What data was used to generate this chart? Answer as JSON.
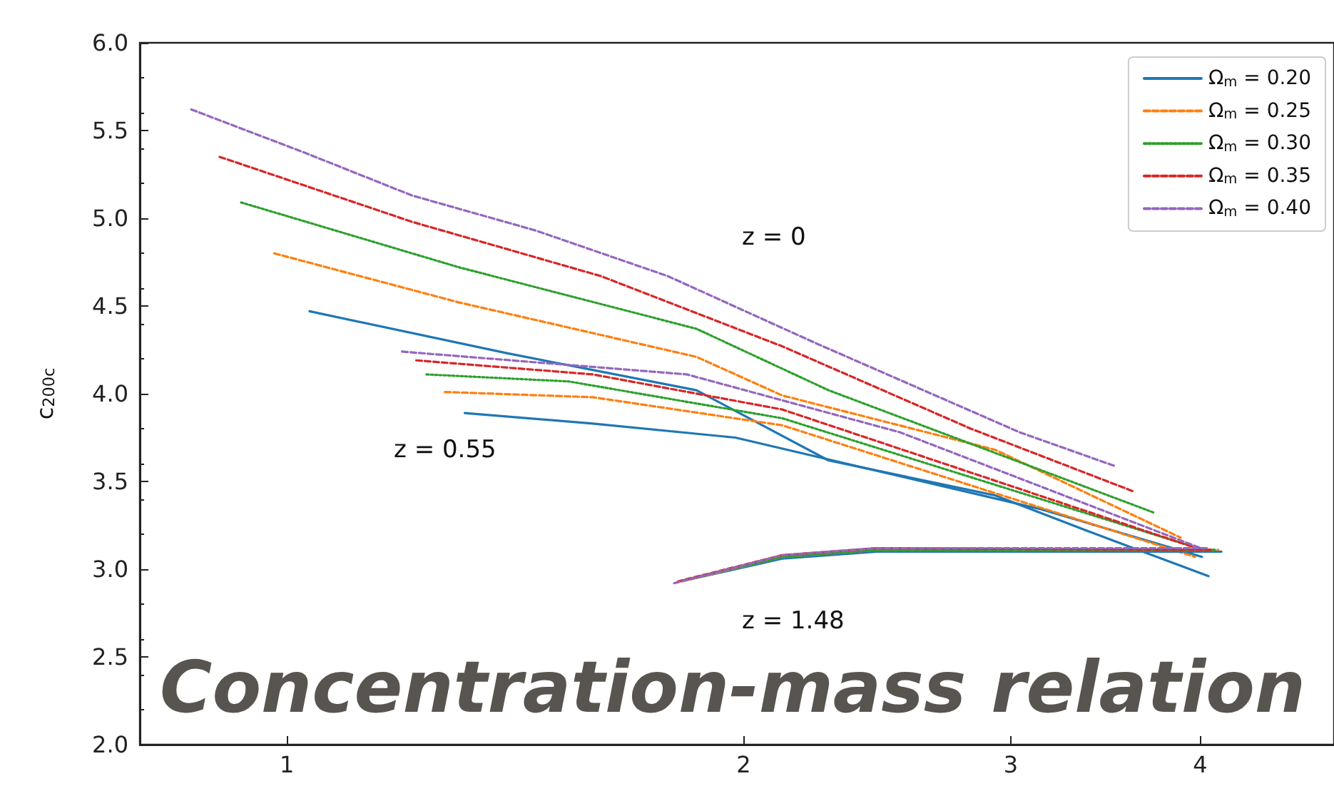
{
  "chart_data": {
    "type": "line",
    "ylabel": "c$_{200c}$",
    "xlim": [
      0.8,
      4.9
    ],
    "xticks": [
      1,
      2,
      3,
      4
    ],
    "ylim": [
      2.0,
      6.0
    ],
    "yticks": [
      {
        "value": 2.0,
        "label": "2.0"
      },
      {
        "value": 2.5,
        "label": "2.5"
      },
      {
        "value": 3.0,
        "label": "3.0"
      },
      {
        "value": 3.5,
        "label": "3.5"
      },
      {
        "value": 4.0,
        "label": "4.0"
      },
      {
        "value": 4.5,
        "label": "4.5"
      },
      {
        "value": 5.0,
        "label": "5.0"
      },
      {
        "value": 5.5,
        "label": "5.5"
      },
      {
        "value": 6.0,
        "label": "6.0"
      }
    ],
    "log": "x",
    "grid": false,
    "legend": "top right",
    "marker": "none",
    "series": [
      {
        "name": "Ω$_{m}$ = 0.20",
        "color": "#1f77b4",
        "line_style": "solid",
        "x": [
          1.035,
          1.398,
          1.862,
          2.275,
          2.931,
          3.389,
          4.05
        ],
        "values": [
          4.47,
          4.23,
          4.02,
          3.62,
          3.42,
          3.21,
          2.96
        ]
      },
      {
        "name": "Ω$_{m}$ = 0.25",
        "color": "#ff7f0e",
        "line_style": "dashed",
        "x": [
          0.981,
          1.299,
          1.862,
          2.121,
          2.931,
          3.882
        ],
        "values": [
          4.8,
          4.52,
          4.21,
          3.99,
          3.68,
          3.18
        ]
      },
      {
        "name": "Ω$_{m}$ = 0.30",
        "color": "#2ca02c",
        "line_style": "dotted",
        "x": [
          0.933,
          1.299,
          1.862,
          2.275,
          3.734
        ],
        "values": [
          5.09,
          4.72,
          4.37,
          4.02,
          3.32
        ]
      },
      {
        "name": "Ω$_{m}$ = 0.35",
        "color": "#d62728",
        "line_style": "dashed",
        "x": [
          0.903,
          1.209,
          1.611,
          2.121,
          2.825,
          3.622
        ],
        "values": [
          5.35,
          4.98,
          4.67,
          4.27,
          3.8,
          3.44
        ]
      },
      {
        "name": "Ω$_{m}$ = 0.40",
        "color": "#9467bd",
        "line_style": "dashed",
        "x": [
          0.865,
          1.03,
          1.209,
          1.459,
          1.783,
          2.229,
          3.041,
          3.508
        ],
        "values": [
          5.62,
          5.37,
          5.13,
          4.93,
          4.67,
          4.29,
          3.78,
          3.59
        ]
      },
      {
        "color": "#1f77b4",
        "line_style": "solid",
        "x": [
          1.31,
          1.591,
          1.975,
          3.147,
          4.01
        ],
        "values": [
          3.89,
          3.83,
          3.75,
          3.34,
          3.07
        ]
      },
      {
        "color": "#ff7f0e",
        "line_style": "dashed",
        "x": [
          1.271,
          1.591,
          2.121,
          3.968
        ],
        "values": [
          4.01,
          3.98,
          3.82,
          3.07
        ]
      },
      {
        "color": "#2ca02c",
        "line_style": "dotted",
        "x": [
          1.236,
          1.534,
          2.121,
          3.95
        ],
        "values": [
          4.11,
          4.07,
          3.86,
          3.13
        ]
      },
      {
        "color": "#d62728",
        "line_style": "dashed",
        "x": [
          1.217,
          1.591,
          2.121,
          4.01
        ],
        "values": [
          4.19,
          4.11,
          3.91,
          3.11
        ]
      },
      {
        "color": "#9467bd",
        "line_style": "dashed",
        "x": [
          1.191,
          1.835,
          2.536,
          4.03
        ],
        "values": [
          4.24,
          4.11,
          3.78,
          3.11
        ]
      },
      {
        "color": "#1f77b4",
        "line_style": "solid",
        "x": [
          1.84,
          2.121,
          2.449,
          4.13
        ],
        "values": [
          2.94,
          3.06,
          3.1,
          3.1
        ]
      },
      {
        "color": "#ff7f0e",
        "line_style": "dashed",
        "x": [
          1.82,
          2.121,
          2.449,
          4.11
        ],
        "values": [
          2.93,
          3.07,
          3.11,
          3.11
        ]
      },
      {
        "color": "#2ca02c",
        "line_style": "dotted",
        "x": [
          1.83,
          2.121,
          2.449,
          4.09
        ],
        "values": [
          2.94,
          3.07,
          3.11,
          3.11
        ]
      },
      {
        "color": "#d62728",
        "line_style": "dashed",
        "x": [
          1.81,
          2.121,
          2.449,
          4.07
        ],
        "values": [
          2.93,
          3.08,
          3.12,
          3.11
        ]
      },
      {
        "color": "#9467bd",
        "line_style": "dashed",
        "x": [
          1.8,
          2.121,
          2.449,
          4.05
        ],
        "values": [
          2.92,
          3.08,
          3.12,
          3.12
        ]
      }
    ],
    "annotations": [
      "z = 0",
      "z = 0.55",
      "z = 1.48",
      "Concentration-mass relation"
    ]
  }
}
